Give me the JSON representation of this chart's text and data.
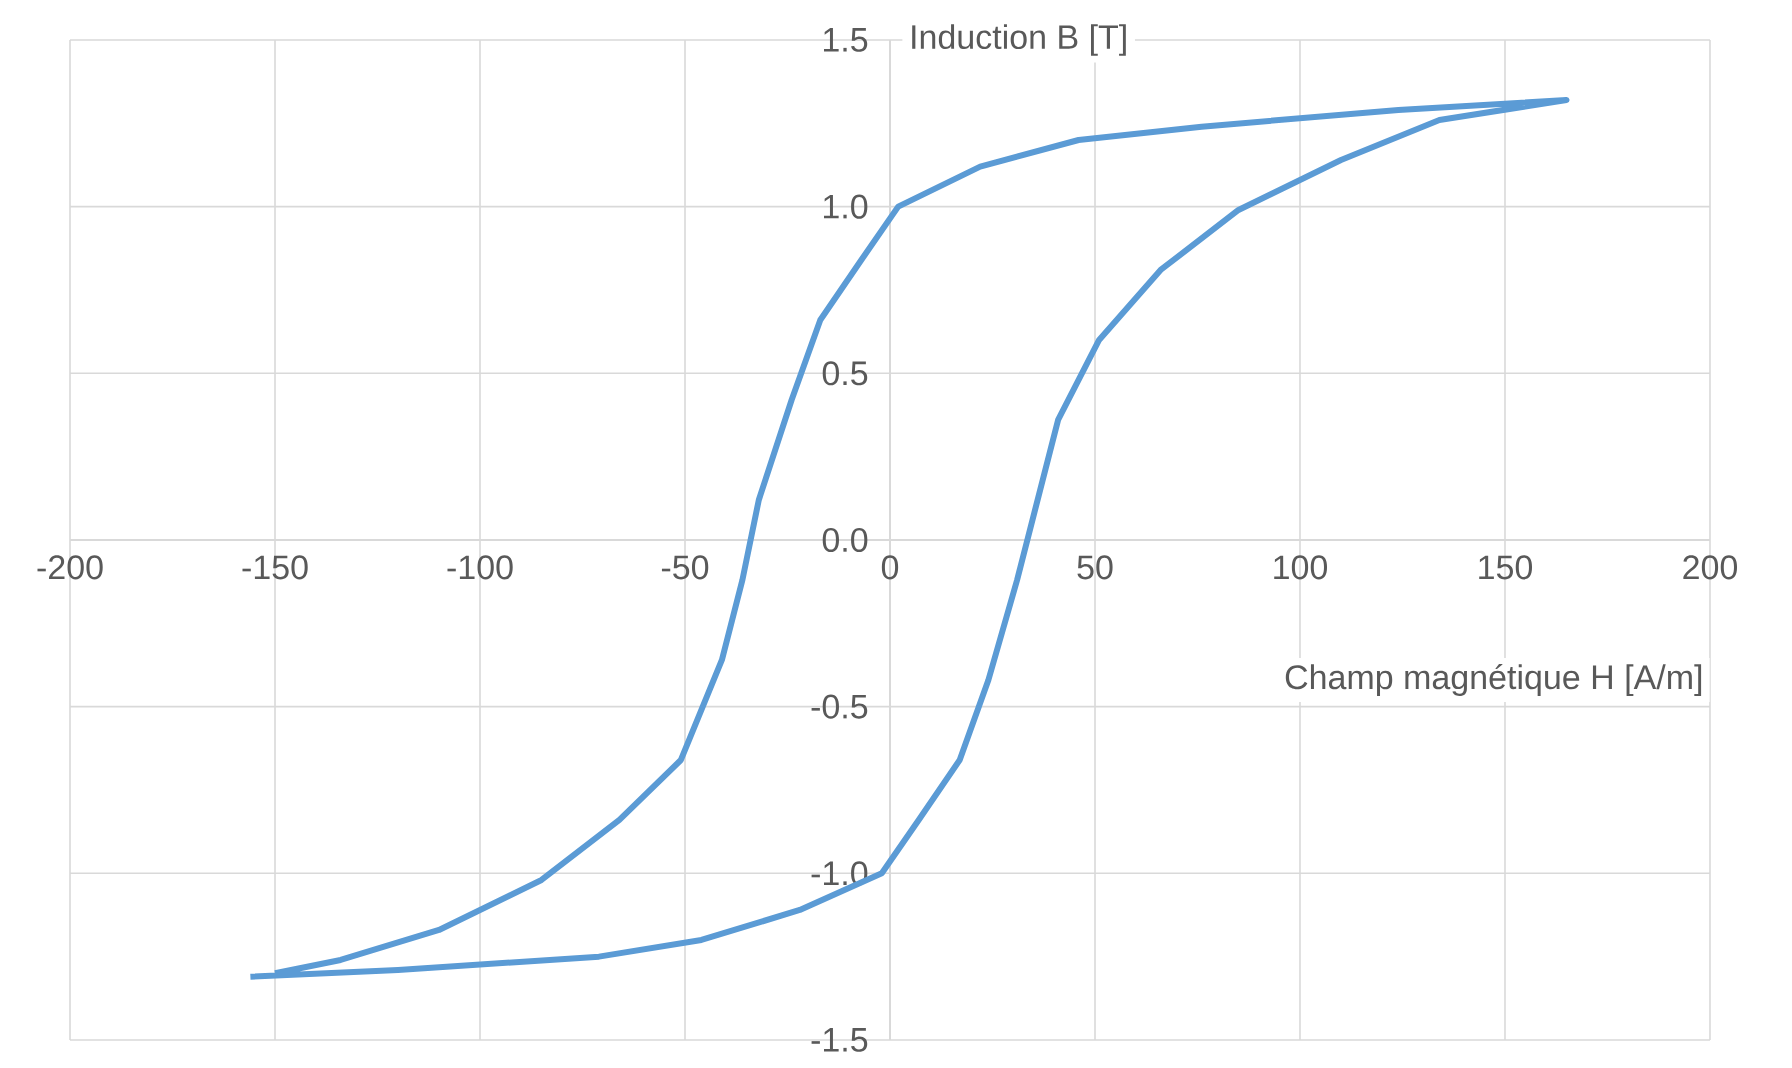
{
  "chart_data": {
    "type": "line",
    "xlabel": "Champ magnétique H [A/m]",
    "ylabel": "Induction B [T]",
    "series": [
      {
        "color": "#5b9bd5",
        "x": [
          -156,
          -120,
          -71,
          -46,
          -22,
          -2,
          7,
          17,
          24,
          31,
          36,
          41,
          51,
          66,
          85,
          110,
          134,
          165,
          124,
          76,
          46,
          22,
          2,
          -7,
          -17,
          -24,
          -32,
          -36,
          -41,
          -51,
          -66,
          -85,
          -110,
          -134,
          -150
        ],
        "values": [
          -1.31,
          -1.29,
          -1.25,
          -1.2,
          -1.11,
          -1.0,
          -0.84,
          -0.66,
          -0.42,
          -0.12,
          0.12,
          0.36,
          0.6,
          0.81,
          0.99,
          1.14,
          1.26,
          1.32,
          1.29,
          1.24,
          1.2,
          1.12,
          1.0,
          0.84,
          0.66,
          0.42,
          0.12,
          -0.12,
          -0.36,
          -0.66,
          -0.84,
          -1.02,
          -1.17,
          -1.26,
          -1.3
        ]
      }
    ],
    "xlim": [
      -200,
      200
    ],
    "ylim": [
      -1.5,
      1.5
    ],
    "xticks": [
      -200,
      -150,
      -100,
      -50,
      0,
      50,
      100,
      150,
      200
    ],
    "yticks": [
      {
        "value": -1.5,
        "label": "-1.5"
      },
      {
        "value": -1,
        "label": "-1.0"
      },
      {
        "value": -0.5,
        "label": "-0.5"
      },
      {
        "value": 0,
        "label": "0.0"
      },
      {
        "value": 0.5,
        "label": "0.5"
      },
      {
        "value": 1,
        "label": "1.0"
      },
      {
        "value": 1.5,
        "label": "1.5"
      }
    ],
    "grid": true,
    "marker": "none",
    "line_style": "solid"
  }
}
